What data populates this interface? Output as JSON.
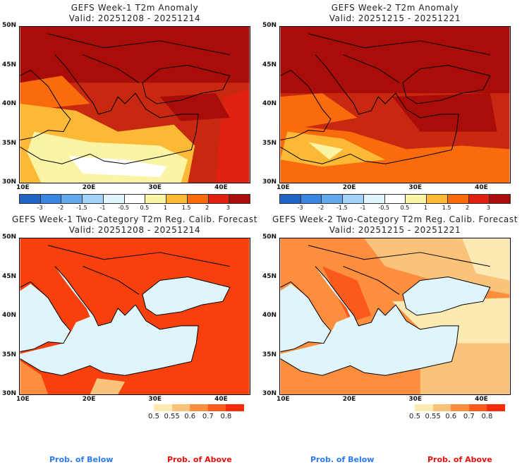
{
  "panels": [
    {
      "title": "GEFS Week-1 T2m Anomaly",
      "valid": "Valid: 20251208 - 20251214"
    },
    {
      "title": "GEFS Week-2 T2m Anomaly",
      "valid": "Valid: 20251215 - 20251221"
    },
    {
      "title": "GEFS Week-1 Two-Category T2m Reg. Calib. Forecast",
      "valid": "Valid: 20251208 - 20251214"
    },
    {
      "title": "GEFS Week-2 Two-Category T2m Reg. Calib. Forecast",
      "valid": "Valid: 20251215 - 20251221"
    }
  ],
  "axes": {
    "lat": [
      "50N",
      "45N",
      "40N",
      "35N",
      "30N"
    ],
    "lon": [
      "10E",
      "20E",
      "30E",
      "40E"
    ]
  },
  "anomaly_colorbar": {
    "labels": [
      "-3",
      "-2",
      "-1.5",
      "-1",
      "-0.5",
      "0.5",
      "1",
      "1.5",
      "2",
      "3"
    ],
    "colors": [
      "#1f63c4",
      "#3a86e0",
      "#64a8ec",
      "#a2d2f7",
      "#dff5fb",
      "#ffffff",
      "#fbf4a4",
      "#fbb936",
      "#f96b0c",
      "#e0210f",
      "#a80d0a"
    ]
  },
  "prob_colorbar": {
    "labels": [
      "0.5",
      "0.55",
      "0.6",
      "0.7",
      "0.8"
    ],
    "colors": [
      "#fde9b2",
      "#fbc27a",
      "#fc8e3e",
      "#fc5a1c",
      "#f82a05"
    ]
  },
  "legend": {
    "below": "Prob. of Below",
    "above": "Prob. of Above",
    "below_color": "#2b7bf0",
    "above_color": "#e8100c"
  }
}
